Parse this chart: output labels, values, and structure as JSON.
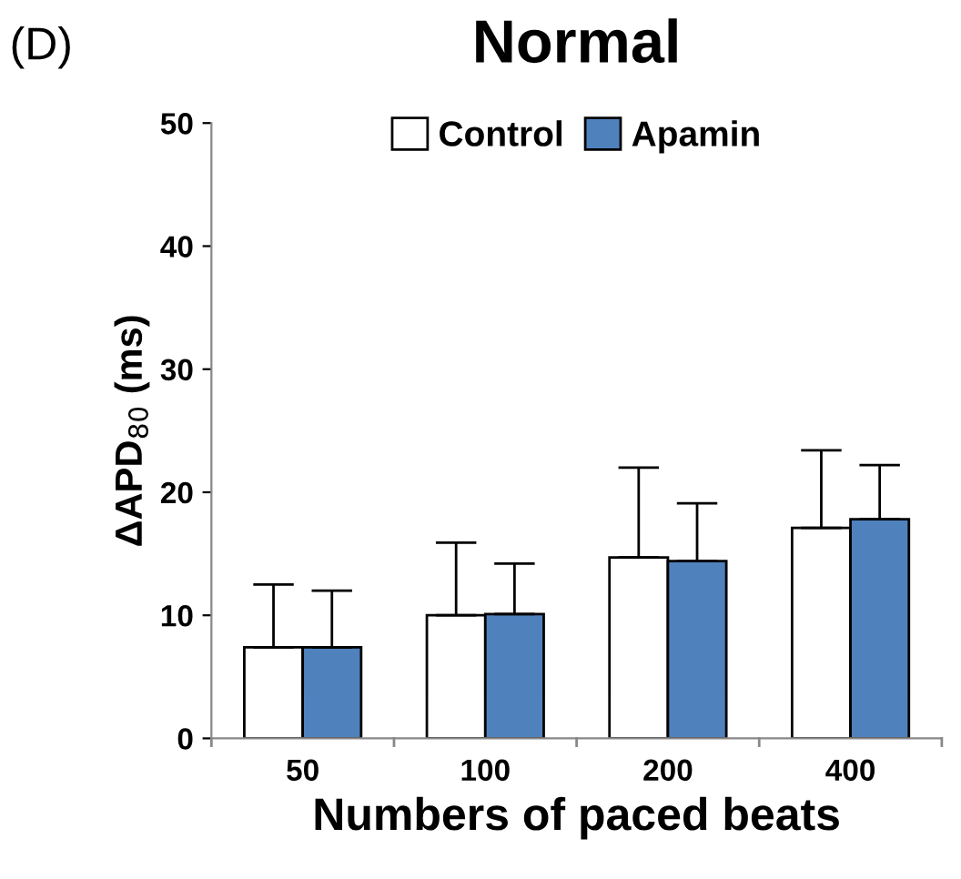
{
  "chart_data": {
    "type": "bar",
    "title": "Normal",
    "ylabel": "ΔAPD$_{80}$ (ms)",
    "xlabel": "Numbers of paced beats",
    "annotations": [
      "(D)"
    ],
    "categories": [
      "50",
      "100",
      "200",
      "400"
    ],
    "series": [
      {
        "name": "Control",
        "color": "#ffffff",
        "values": [
          7.4,
          10.0,
          14.7,
          17.1
        ],
        "errors": [
          [
            7.4,
            12.5
          ],
          [
            10.0,
            15.9
          ],
          [
            14.7,
            22.0
          ],
          [
            17.1,
            23.4
          ]
        ]
      },
      {
        "name": "Apamin",
        "color": "#4f81bd",
        "values": [
          7.4,
          10.1,
          14.4,
          17.8
        ],
        "errors": [
          [
            7.4,
            12.0
          ],
          [
            10.1,
            14.2
          ],
          [
            14.4,
            19.1
          ],
          [
            17.8,
            22.2
          ]
        ]
      }
    ],
    "ylim": [
      0,
      50
    ],
    "yticks": [
      0,
      10,
      20,
      30,
      40,
      50
    ],
    "grid": false,
    "legend": "top"
  }
}
